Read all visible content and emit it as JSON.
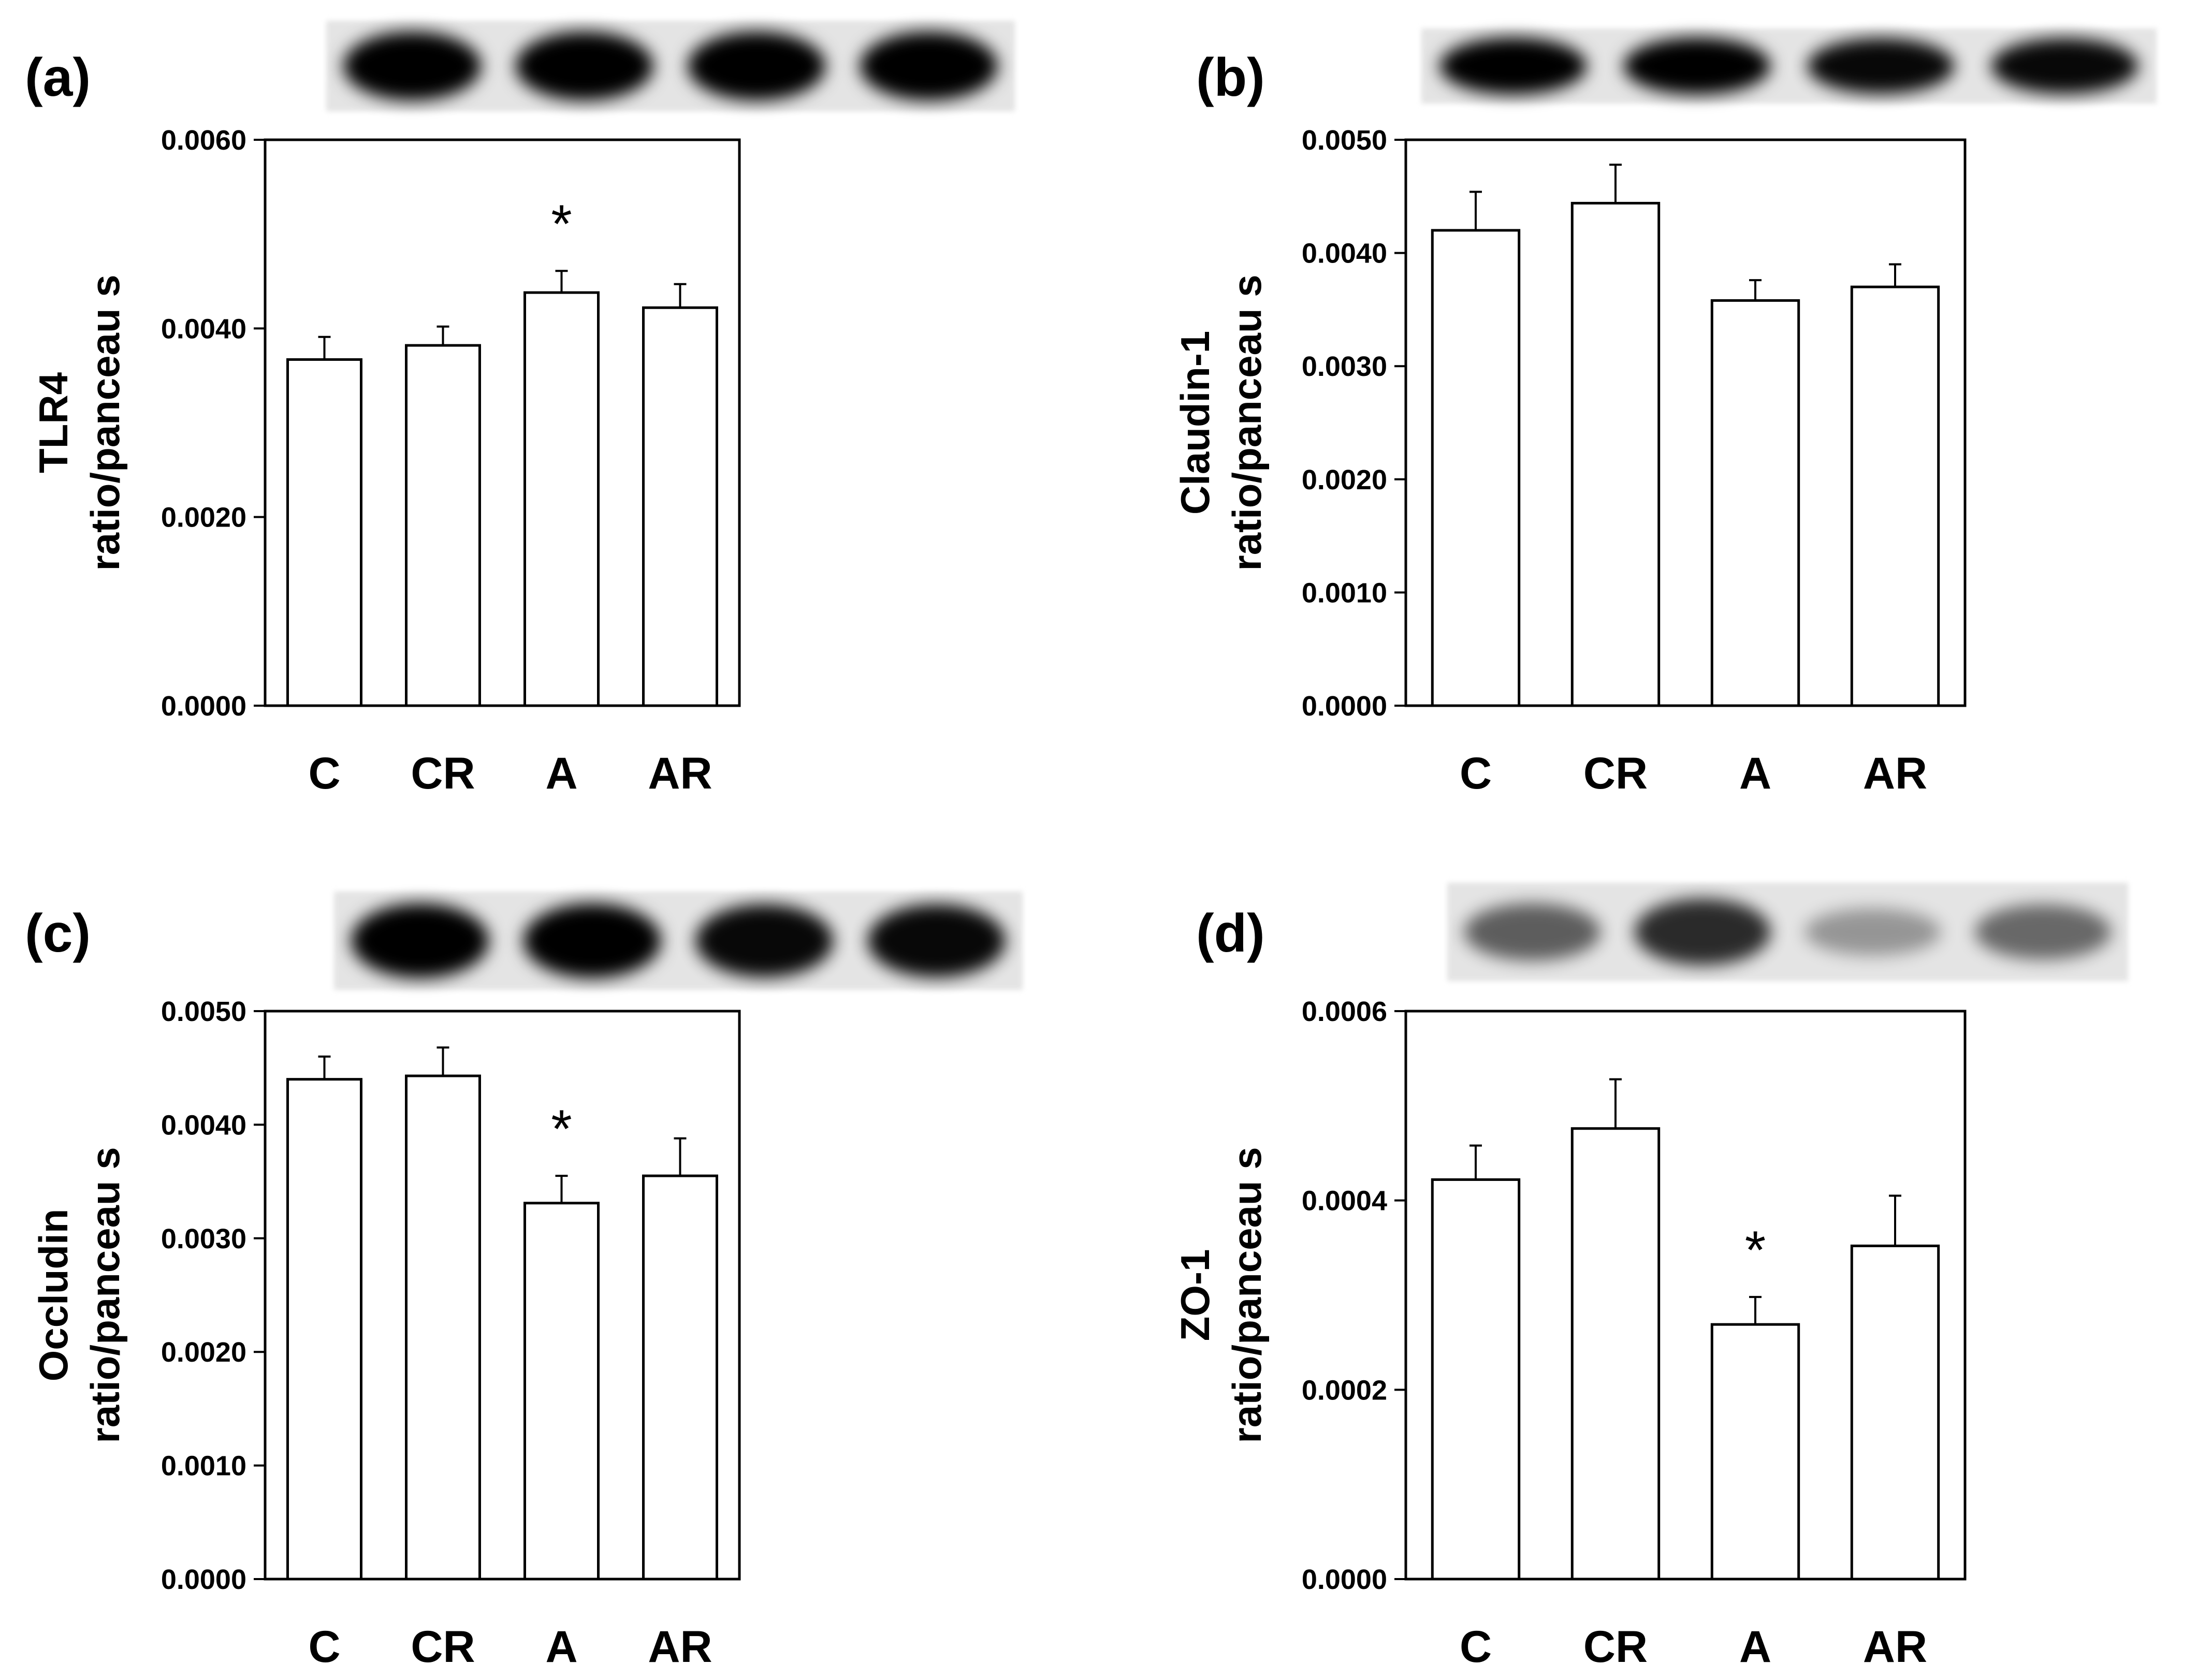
{
  "chart_data": [
    {
      "type": "bar",
      "panel_label": "(a)",
      "ylabel": [
        "TLR4",
        "ratio/panceau s"
      ],
      "categories": [
        "C",
        "CR",
        "A",
        "AR"
      ],
      "values": [
        0.00367,
        0.00382,
        0.00438,
        0.00422
      ],
      "errors": [
        0.00024,
        0.0002,
        0.00023,
        0.00025
      ],
      "ylim": [
        0,
        0.006
      ],
      "yticks": [
        "0.0000",
        "0.0020",
        "0.0040",
        "0.0060"
      ],
      "significance": [
        {
          "category": "A",
          "marker": "*"
        }
      ],
      "blot": {
        "intensities": [
          1.0,
          1.0,
          1.0,
          1.0
        ]
      }
    },
    {
      "type": "bar",
      "panel_label": "(b)",
      "ylabel": [
        "Claudin-1",
        "ratio/panceau s"
      ],
      "categories": [
        "C",
        "CR",
        "A",
        "AR"
      ],
      "values": [
        0.0042,
        0.00444,
        0.00358,
        0.0037
      ],
      "errors": [
        0.00034,
        0.00034,
        0.00018,
        0.0002
      ],
      "ylim": [
        0,
        0.005
      ],
      "yticks": [
        "0.0000",
        "0.0010",
        "0.0020",
        "0.0030",
        "0.0040",
        "0.0050"
      ],
      "significance": [],
      "blot": {
        "intensities": [
          1.0,
          1.0,
          0.95,
          0.95
        ]
      }
    },
    {
      "type": "bar",
      "panel_label": "(c)",
      "ylabel": [
        "Occludin",
        "ratio/panceau s"
      ],
      "categories": [
        "C",
        "CR",
        "A",
        "AR"
      ],
      "values": [
        0.0044,
        0.00443,
        0.00331,
        0.00355
      ],
      "errors": [
        0.0002,
        0.00025,
        0.00024,
        0.00033
      ],
      "ylim": [
        0,
        0.005
      ],
      "yticks": [
        "0.0000",
        "0.0010",
        "0.0020",
        "0.0030",
        "0.0040",
        "0.0050"
      ],
      "significance": [
        {
          "category": "A",
          "marker": "*"
        }
      ],
      "blot": {
        "intensities": [
          1.0,
          1.0,
          0.95,
          0.95
        ]
      }
    },
    {
      "type": "bar",
      "panel_label": "(d)",
      "ylabel": [
        "ZO-1",
        "ratio/panceau s"
      ],
      "categories": [
        "C",
        "CR",
        "A",
        "AR"
      ],
      "values": [
        0.000422,
        0.000476,
        0.000269,
        0.000352
      ],
      "errors": [
        3.6e-05,
        5.2e-05,
        2.9e-05,
        5.3e-05
      ],
      "ylim": [
        0,
        0.0006
      ],
      "yticks": [
        "0.0000",
        "0.0002",
        "0.0004",
        "0.0006"
      ],
      "significance": [
        {
          "category": "A",
          "marker": "*"
        }
      ],
      "blot": {
        "intensities": [
          0.45,
          0.75,
          0.12,
          0.38
        ]
      }
    }
  ],
  "colors": {
    "bar_fill": "#ffffff",
    "stroke": "#000000",
    "blot_band": "#000000",
    "blot_background": "#e4e4e4"
  }
}
